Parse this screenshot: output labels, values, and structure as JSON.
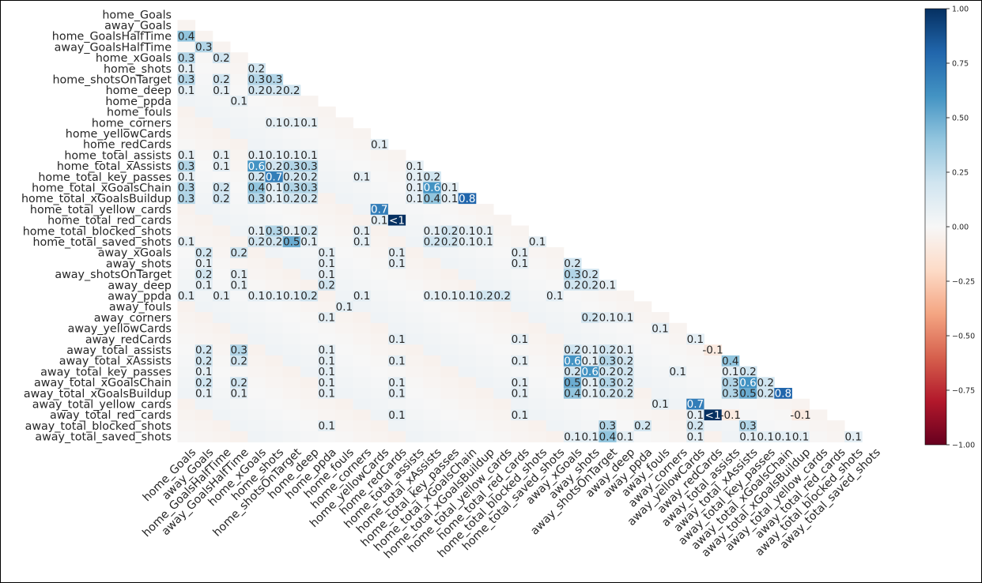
{
  "chart_data": {
    "type": "heatmap",
    "title": "",
    "xlabel": "",
    "ylabel": "",
    "mask": "upper triangle and diagonal hidden",
    "cell_label_rule": "values rounded to 1 decimal; only labels whose magnitude is at least 0.1 are printed; value 1 shown as '<1'",
    "variables": [
      "home_Goals",
      "away_Goals",
      "home_GoalsHalfTime",
      "away_GoalsHalfTime",
      "home_xGoals",
      "home_shots",
      "home_shotsOnTarget",
      "home_deep",
      "home_ppda",
      "home_fouls",
      "home_corners",
      "home_yellowCards",
      "home_redCards",
      "home_total_assists",
      "home_total_xAssists",
      "home_total_key_passes",
      "home_total_xGoalsChain",
      "home_total_xGoalsBuildup",
      "home_total_yellow_cards",
      "home_total_red_cards",
      "home_total_blocked_shots",
      "home_total_saved_shots",
      "away_xGoals",
      "away_shots",
      "away_shotsOnTarget",
      "away_deep",
      "away_ppda",
      "away_fouls",
      "away_corners",
      "away_yellowCards",
      "away_redCards",
      "away_total_assists",
      "away_total_xAssists",
      "away_total_key_passes",
      "away_total_xGoalsChain",
      "away_total_xGoalsBuildup",
      "away_total_yellow_cards",
      "away_total_red_cards",
      "away_total_blocked_shots",
      "away_total_saved_shots"
    ],
    "cells": [
      {
        "row": 2,
        "col": 0,
        "value": 0.4
      },
      {
        "row": 3,
        "col": 1,
        "value": 0.3
      },
      {
        "row": 4,
        "col": 0,
        "value": 0.3
      },
      {
        "row": 4,
        "col": 2,
        "value": 0.2
      },
      {
        "row": 5,
        "col": 0,
        "value": 0.1
      },
      {
        "row": 5,
        "col": 4,
        "value": 0.2
      },
      {
        "row": 6,
        "col": 0,
        "value": 0.3
      },
      {
        "row": 6,
        "col": 2,
        "value": 0.2
      },
      {
        "row": 6,
        "col": 4,
        "value": 0.3
      },
      {
        "row": 6,
        "col": 5,
        "value": 0.3
      },
      {
        "row": 7,
        "col": 0,
        "value": 0.1
      },
      {
        "row": 7,
        "col": 2,
        "value": 0.1
      },
      {
        "row": 7,
        "col": 4,
        "value": 0.2
      },
      {
        "row": 7,
        "col": 5,
        "value": 0.2
      },
      {
        "row": 7,
        "col": 6,
        "value": 0.2
      },
      {
        "row": 8,
        "col": 3,
        "value": 0.1
      },
      {
        "row": 10,
        "col": 5,
        "value": 0.1
      },
      {
        "row": 10,
        "col": 6,
        "value": 0.1
      },
      {
        "row": 10,
        "col": 7,
        "value": 0.1
      },
      {
        "row": 12,
        "col": 11,
        "value": 0.1
      },
      {
        "row": 13,
        "col": 0,
        "value": 0.1
      },
      {
        "row": 13,
        "col": 2,
        "value": 0.1
      },
      {
        "row": 13,
        "col": 4,
        "value": 0.1
      },
      {
        "row": 13,
        "col": 5,
        "value": 0.1
      },
      {
        "row": 13,
        "col": 6,
        "value": 0.1
      },
      {
        "row": 13,
        "col": 7,
        "value": 0.1
      },
      {
        "row": 14,
        "col": 0,
        "value": 0.3
      },
      {
        "row": 14,
        "col": 2,
        "value": 0.1
      },
      {
        "row": 14,
        "col": 4,
        "value": 0.6
      },
      {
        "row": 14,
        "col": 5,
        "value": 0.2
      },
      {
        "row": 14,
        "col": 6,
        "value": 0.3
      },
      {
        "row": 14,
        "col": 7,
        "value": 0.3
      },
      {
        "row": 14,
        "col": 13,
        "value": 0.1
      },
      {
        "row": 15,
        "col": 0,
        "value": 0.1
      },
      {
        "row": 15,
        "col": 4,
        "value": 0.2
      },
      {
        "row": 15,
        "col": 5,
        "value": 0.7
      },
      {
        "row": 15,
        "col": 6,
        "value": 0.2
      },
      {
        "row": 15,
        "col": 7,
        "value": 0.2
      },
      {
        "row": 15,
        "col": 10,
        "value": 0.1
      },
      {
        "row": 15,
        "col": 13,
        "value": 0.1
      },
      {
        "row": 15,
        "col": 14,
        "value": 0.2
      },
      {
        "row": 16,
        "col": 0,
        "value": 0.3
      },
      {
        "row": 16,
        "col": 2,
        "value": 0.2
      },
      {
        "row": 16,
        "col": 4,
        "value": 0.4
      },
      {
        "row": 16,
        "col": 5,
        "value": 0.1
      },
      {
        "row": 16,
        "col": 6,
        "value": 0.3
      },
      {
        "row": 16,
        "col": 7,
        "value": 0.3
      },
      {
        "row": 16,
        "col": 13,
        "value": 0.1
      },
      {
        "row": 16,
        "col": 14,
        "value": 0.6
      },
      {
        "row": 16,
        "col": 15,
        "value": 0.1
      },
      {
        "row": 17,
        "col": 0,
        "value": 0.3
      },
      {
        "row": 17,
        "col": 2,
        "value": 0.2
      },
      {
        "row": 17,
        "col": 4,
        "value": 0.3
      },
      {
        "row": 17,
        "col": 5,
        "value": 0.1
      },
      {
        "row": 17,
        "col": 6,
        "value": 0.2
      },
      {
        "row": 17,
        "col": 7,
        "value": 0.2
      },
      {
        "row": 17,
        "col": 13,
        "value": 0.1
      },
      {
        "row": 17,
        "col": 14,
        "value": 0.4
      },
      {
        "row": 17,
        "col": 15,
        "value": 0.1
      },
      {
        "row": 17,
        "col": 16,
        "value": 0.8
      },
      {
        "row": 18,
        "col": 11,
        "value": 0.7
      },
      {
        "row": 19,
        "col": 11,
        "value": 0.1
      },
      {
        "row": 19,
        "col": 12,
        "value": 1.0
      },
      {
        "row": 20,
        "col": 4,
        "value": 0.1
      },
      {
        "row": 20,
        "col": 5,
        "value": 0.3
      },
      {
        "row": 20,
        "col": 6,
        "value": 0.1
      },
      {
        "row": 20,
        "col": 7,
        "value": 0.2
      },
      {
        "row": 20,
        "col": 10,
        "value": 0.1
      },
      {
        "row": 20,
        "col": 14,
        "value": 0.1
      },
      {
        "row": 20,
        "col": 15,
        "value": 0.2
      },
      {
        "row": 20,
        "col": 16,
        "value": 0.1
      },
      {
        "row": 20,
        "col": 17,
        "value": 0.1
      },
      {
        "row": 21,
        "col": 0,
        "value": 0.1
      },
      {
        "row": 21,
        "col": 4,
        "value": 0.2
      },
      {
        "row": 21,
        "col": 5,
        "value": 0.2
      },
      {
        "row": 21,
        "col": 6,
        "value": 0.5
      },
      {
        "row": 21,
        "col": 7,
        "value": 0.1
      },
      {
        "row": 21,
        "col": 10,
        "value": 0.1
      },
      {
        "row": 21,
        "col": 14,
        "value": 0.2
      },
      {
        "row": 21,
        "col": 15,
        "value": 0.2
      },
      {
        "row": 21,
        "col": 16,
        "value": 0.1
      },
      {
        "row": 21,
        "col": 17,
        "value": 0.1
      },
      {
        "row": 21,
        "col": 20,
        "value": 0.1
      },
      {
        "row": 22,
        "col": 1,
        "value": 0.2
      },
      {
        "row": 22,
        "col": 3,
        "value": 0.2
      },
      {
        "row": 22,
        "col": 8,
        "value": 0.1
      },
      {
        "row": 22,
        "col": 12,
        "value": 0.1
      },
      {
        "row": 22,
        "col": 19,
        "value": 0.1
      },
      {
        "row": 23,
        "col": 1,
        "value": 0.1
      },
      {
        "row": 23,
        "col": 8,
        "value": 0.1
      },
      {
        "row": 23,
        "col": 12,
        "value": 0.1
      },
      {
        "row": 23,
        "col": 19,
        "value": 0.1
      },
      {
        "row": 23,
        "col": 22,
        "value": 0.2
      },
      {
        "row": 24,
        "col": 1,
        "value": 0.2
      },
      {
        "row": 24,
        "col": 3,
        "value": 0.1
      },
      {
        "row": 24,
        "col": 8,
        "value": 0.1
      },
      {
        "row": 24,
        "col": 22,
        "value": 0.3
      },
      {
        "row": 24,
        "col": 23,
        "value": 0.2
      },
      {
        "row": 25,
        "col": 1,
        "value": 0.1
      },
      {
        "row": 25,
        "col": 3,
        "value": 0.1
      },
      {
        "row": 25,
        "col": 8,
        "value": 0.2
      },
      {
        "row": 25,
        "col": 22,
        "value": 0.2
      },
      {
        "row": 25,
        "col": 23,
        "value": 0.2
      },
      {
        "row": 25,
        "col": 24,
        "value": 0.1
      },
      {
        "row": 26,
        "col": 0,
        "value": 0.1
      },
      {
        "row": 26,
        "col": 2,
        "value": 0.1
      },
      {
        "row": 26,
        "col": 4,
        "value": 0.1
      },
      {
        "row": 26,
        "col": 5,
        "value": 0.1
      },
      {
        "row": 26,
        "col": 6,
        "value": 0.1
      },
      {
        "row": 26,
        "col": 7,
        "value": 0.2
      },
      {
        "row": 26,
        "col": 10,
        "value": 0.1
      },
      {
        "row": 26,
        "col": 14,
        "value": 0.1
      },
      {
        "row": 26,
        "col": 15,
        "value": 0.1
      },
      {
        "row": 26,
        "col": 16,
        "value": 0.1
      },
      {
        "row": 26,
        "col": 17,
        "value": 0.2
      },
      {
        "row": 26,
        "col": 18,
        "value": 0.2
      },
      {
        "row": 26,
        "col": 21,
        "value": 0.1
      },
      {
        "row": 27,
        "col": 9,
        "value": 0.1
      },
      {
        "row": 28,
        "col": 8,
        "value": 0.1
      },
      {
        "row": 28,
        "col": 23,
        "value": 0.2
      },
      {
        "row": 28,
        "col": 24,
        "value": 0.1
      },
      {
        "row": 28,
        "col": 25,
        "value": 0.1
      },
      {
        "row": 29,
        "col": 27,
        "value": 0.1
      },
      {
        "row": 30,
        "col": 12,
        "value": 0.1
      },
      {
        "row": 30,
        "col": 19,
        "value": 0.1
      },
      {
        "row": 30,
        "col": 29,
        "value": 0.1
      },
      {
        "row": 31,
        "col": 1,
        "value": 0.2
      },
      {
        "row": 31,
        "col": 3,
        "value": 0.3
      },
      {
        "row": 31,
        "col": 8,
        "value": 0.1
      },
      {
        "row": 31,
        "col": 22,
        "value": 0.2
      },
      {
        "row": 31,
        "col": 23,
        "value": 0.1
      },
      {
        "row": 31,
        "col": 24,
        "value": 0.2
      },
      {
        "row": 31,
        "col": 25,
        "value": 0.1
      },
      {
        "row": 31,
        "col": 30,
        "value": -0.1
      },
      {
        "row": 32,
        "col": 1,
        "value": 0.2
      },
      {
        "row": 32,
        "col": 3,
        "value": 0.2
      },
      {
        "row": 32,
        "col": 8,
        "value": 0.1
      },
      {
        "row": 32,
        "col": 12,
        "value": 0.1
      },
      {
        "row": 32,
        "col": 19,
        "value": 0.1
      },
      {
        "row": 32,
        "col": 22,
        "value": 0.6
      },
      {
        "row": 32,
        "col": 23,
        "value": 0.1
      },
      {
        "row": 32,
        "col": 24,
        "value": 0.3
      },
      {
        "row": 32,
        "col": 25,
        "value": 0.2
      },
      {
        "row": 32,
        "col": 31,
        "value": 0.4
      },
      {
        "row": 33,
        "col": 1,
        "value": 0.1
      },
      {
        "row": 33,
        "col": 8,
        "value": 0.1
      },
      {
        "row": 33,
        "col": 22,
        "value": 0.2
      },
      {
        "row": 33,
        "col": 23,
        "value": 0.6
      },
      {
        "row": 33,
        "col": 24,
        "value": 0.2
      },
      {
        "row": 33,
        "col": 25,
        "value": 0.2
      },
      {
        "row": 33,
        "col": 28,
        "value": 0.1
      },
      {
        "row": 33,
        "col": 31,
        "value": 0.1
      },
      {
        "row": 33,
        "col": 32,
        "value": 0.2
      },
      {
        "row": 34,
        "col": 1,
        "value": 0.2
      },
      {
        "row": 34,
        "col": 3,
        "value": 0.2
      },
      {
        "row": 34,
        "col": 8,
        "value": 0.1
      },
      {
        "row": 34,
        "col": 12,
        "value": 0.1
      },
      {
        "row": 34,
        "col": 19,
        "value": 0.1
      },
      {
        "row": 34,
        "col": 22,
        "value": 0.5
      },
      {
        "row": 34,
        "col": 23,
        "value": 0.1
      },
      {
        "row": 34,
        "col": 24,
        "value": 0.3
      },
      {
        "row": 34,
        "col": 25,
        "value": 0.2
      },
      {
        "row": 34,
        "col": 31,
        "value": 0.3
      },
      {
        "row": 34,
        "col": 32,
        "value": 0.6
      },
      {
        "row": 34,
        "col": 33,
        "value": 0.2
      },
      {
        "row": 35,
        "col": 1,
        "value": 0.1
      },
      {
        "row": 35,
        "col": 3,
        "value": 0.1
      },
      {
        "row": 35,
        "col": 8,
        "value": 0.1
      },
      {
        "row": 35,
        "col": 12,
        "value": 0.1
      },
      {
        "row": 35,
        "col": 19,
        "value": 0.1
      },
      {
        "row": 35,
        "col": 22,
        "value": 0.4
      },
      {
        "row": 35,
        "col": 23,
        "value": 0.1
      },
      {
        "row": 35,
        "col": 24,
        "value": 0.2
      },
      {
        "row": 35,
        "col": 25,
        "value": 0.2
      },
      {
        "row": 35,
        "col": 31,
        "value": 0.3
      },
      {
        "row": 35,
        "col": 32,
        "value": 0.5
      },
      {
        "row": 35,
        "col": 33,
        "value": 0.2
      },
      {
        "row": 35,
        "col": 34,
        "value": 0.8
      },
      {
        "row": 36,
        "col": 27,
        "value": 0.1
      },
      {
        "row": 36,
        "col": 29,
        "value": 0.7
      },
      {
        "row": 37,
        "col": 12,
        "value": 0.1
      },
      {
        "row": 37,
        "col": 19,
        "value": 0.1
      },
      {
        "row": 37,
        "col": 29,
        "value": 0.1
      },
      {
        "row": 37,
        "col": 30,
        "value": 1.0
      },
      {
        "row": 37,
        "col": 31,
        "value": -0.1
      },
      {
        "row": 37,
        "col": 35,
        "value": -0.1
      },
      {
        "row": 38,
        "col": 8,
        "value": 0.1
      },
      {
        "row": 38,
        "col": 24,
        "value": 0.3
      },
      {
        "row": 38,
        "col": 26,
        "value": 0.2
      },
      {
        "row": 38,
        "col": 29,
        "value": 0.2
      },
      {
        "row": 38,
        "col": 32,
        "value": 0.3
      },
      {
        "row": 39,
        "col": 22,
        "value": 0.1
      },
      {
        "row": 39,
        "col": 23,
        "value": 0.1
      },
      {
        "row": 39,
        "col": 24,
        "value": 0.4
      },
      {
        "row": 39,
        "col": 25,
        "value": 0.1
      },
      {
        "row": 39,
        "col": 29,
        "value": 0.1
      },
      {
        "row": 39,
        "col": 32,
        "value": 0.1
      },
      {
        "row": 39,
        "col": 33,
        "value": 0.1
      },
      {
        "row": 39,
        "col": 34,
        "value": 0.1
      },
      {
        "row": 39,
        "col": 35,
        "value": 0.1
      },
      {
        "row": 39,
        "col": 38,
        "value": 0.1
      }
    ],
    "colorbar": {
      "colormap": "RdBu",
      "range": [
        -1.0,
        1.0
      ],
      "ticks": [
        "1.00",
        "0.75",
        "0.50",
        "0.25",
        "0.00",
        "−0.25",
        "−0.50",
        "−0.75",
        "−1.00"
      ]
    },
    "grid": false,
    "legend": "colorbar-right"
  }
}
